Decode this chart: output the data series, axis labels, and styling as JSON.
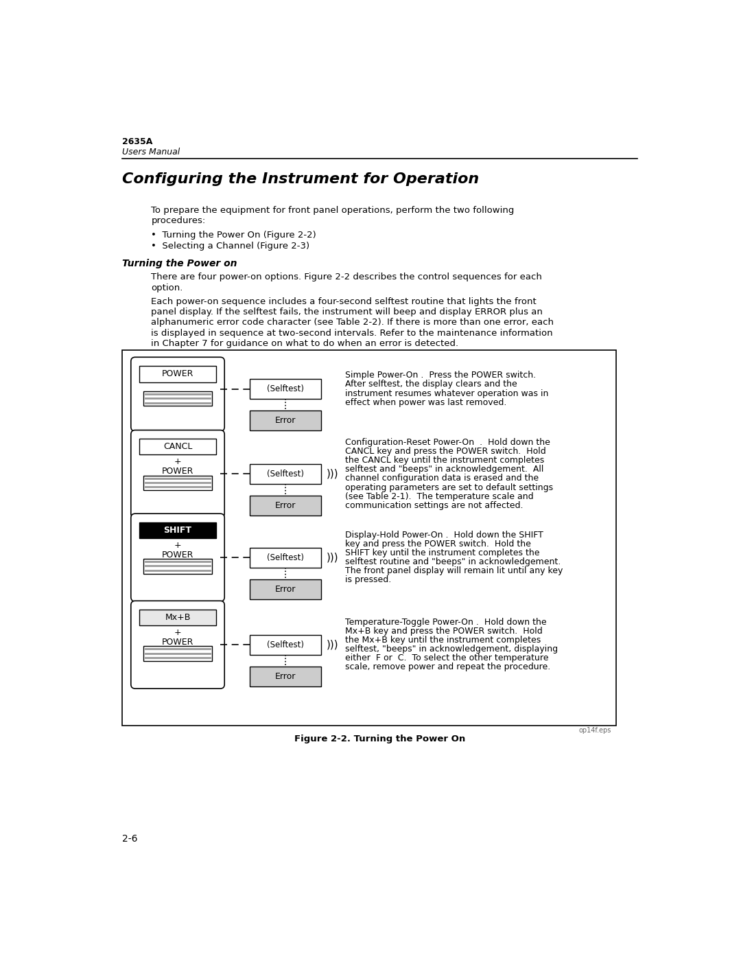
{
  "bg_color": "#ffffff",
  "page_number": "2-6",
  "header_title": "2635A",
  "header_subtitle": "Users Manual",
  "section_title": "Configuring the Instrument for Operation",
  "intro_line1": "To prepare the equipment for front panel operations, perform the two following",
  "intro_line2": "procedures:",
  "bullet1": "Turning the Power On (Figure 2-2)",
  "bullet2": "Selecting a Channel (Figure 2-3)",
  "subsection_title": "Turning the Power on",
  "para1_line1": "There are four power-on options. Figure 2-2 describes the control sequences for each",
  "para1_line2": "option.",
  "para2_line1": "Each power-on sequence includes a four-second selftest routine that lights the front",
  "para2_line2": "panel display. If the selftest fails, the instrument will beep and display ERROR plus an",
  "para2_line3": "alphanumeric error code character (see Table 2-2). If there is more than one error, each",
  "para2_line4": "is displayed in sequence at two-second intervals. Refer to the maintenance information",
  "para2_line5": "in Chapter 7 for guidance on what to do when an error is detected.",
  "figure_caption": "Figure 2-2. Turning the Power On",
  "file_ref": "op14f.eps",
  "rows": [
    {
      "key_label": "POWER",
      "key_bg": "#ffffff",
      "key_text_color": "#000000",
      "key_bold": false,
      "has_plus": false,
      "selftest_label": "(Selftest)",
      "has_beep": false,
      "desc_lines": [
        "Simple Power-On .  Press the POWER switch.",
        "After selftest, the display clears and the",
        "instrument resumes whatever operation was in",
        "effect when power was last removed."
      ]
    },
    {
      "key_label": "CANCL",
      "key_bg": "#ffffff",
      "key_text_color": "#000000",
      "key_bold": false,
      "has_plus": true,
      "selftest_label": "(Selftest)",
      "has_beep": true,
      "desc_lines": [
        "Configuration-Reset Power-On  .  Hold down the",
        "CANCL key and press the POWER switch.  Hold",
        "the CANCL key until the instrument completes",
        "selftest and \"beeps\" in acknowledgement.  All",
        "channel configuration data is erased and the",
        "operating parameters are set to default settings",
        "(see Table 2-1).  The temperature scale and",
        "communication settings are not affected."
      ]
    },
    {
      "key_label": "SHIFT",
      "key_bg": "#000000",
      "key_text_color": "#ffffff",
      "key_bold": true,
      "has_plus": true,
      "selftest_label": "(Selftest)",
      "has_beep": true,
      "desc_lines": [
        "Display-Hold Power-On .  Hold down the SHIFT",
        "key and press the POWER switch.  Hold the",
        "SHIFT key until the instrument completes the",
        "selftest routine and \"beeps\" in acknowledgement.",
        "The front panel display will remain lit until any key",
        "is pressed."
      ]
    },
    {
      "key_label": "Mx+B",
      "key_bg": "#e8e8e8",
      "key_text_color": "#000000",
      "key_bold": false,
      "has_plus": true,
      "selftest_label": "(Selftest)",
      "has_beep": true,
      "desc_lines": [
        "Temperature-Toggle Power-On .  Hold down the",
        "Mx+B key and press the POWER switch.  Hold",
        "the Mx+B key until the instrument completes",
        "selftest, \"beeps\" in acknowledgement, displaying",
        "either  F or  C.  To select the other temperature",
        "scale, remove power and repeat the procedure."
      ]
    }
  ]
}
